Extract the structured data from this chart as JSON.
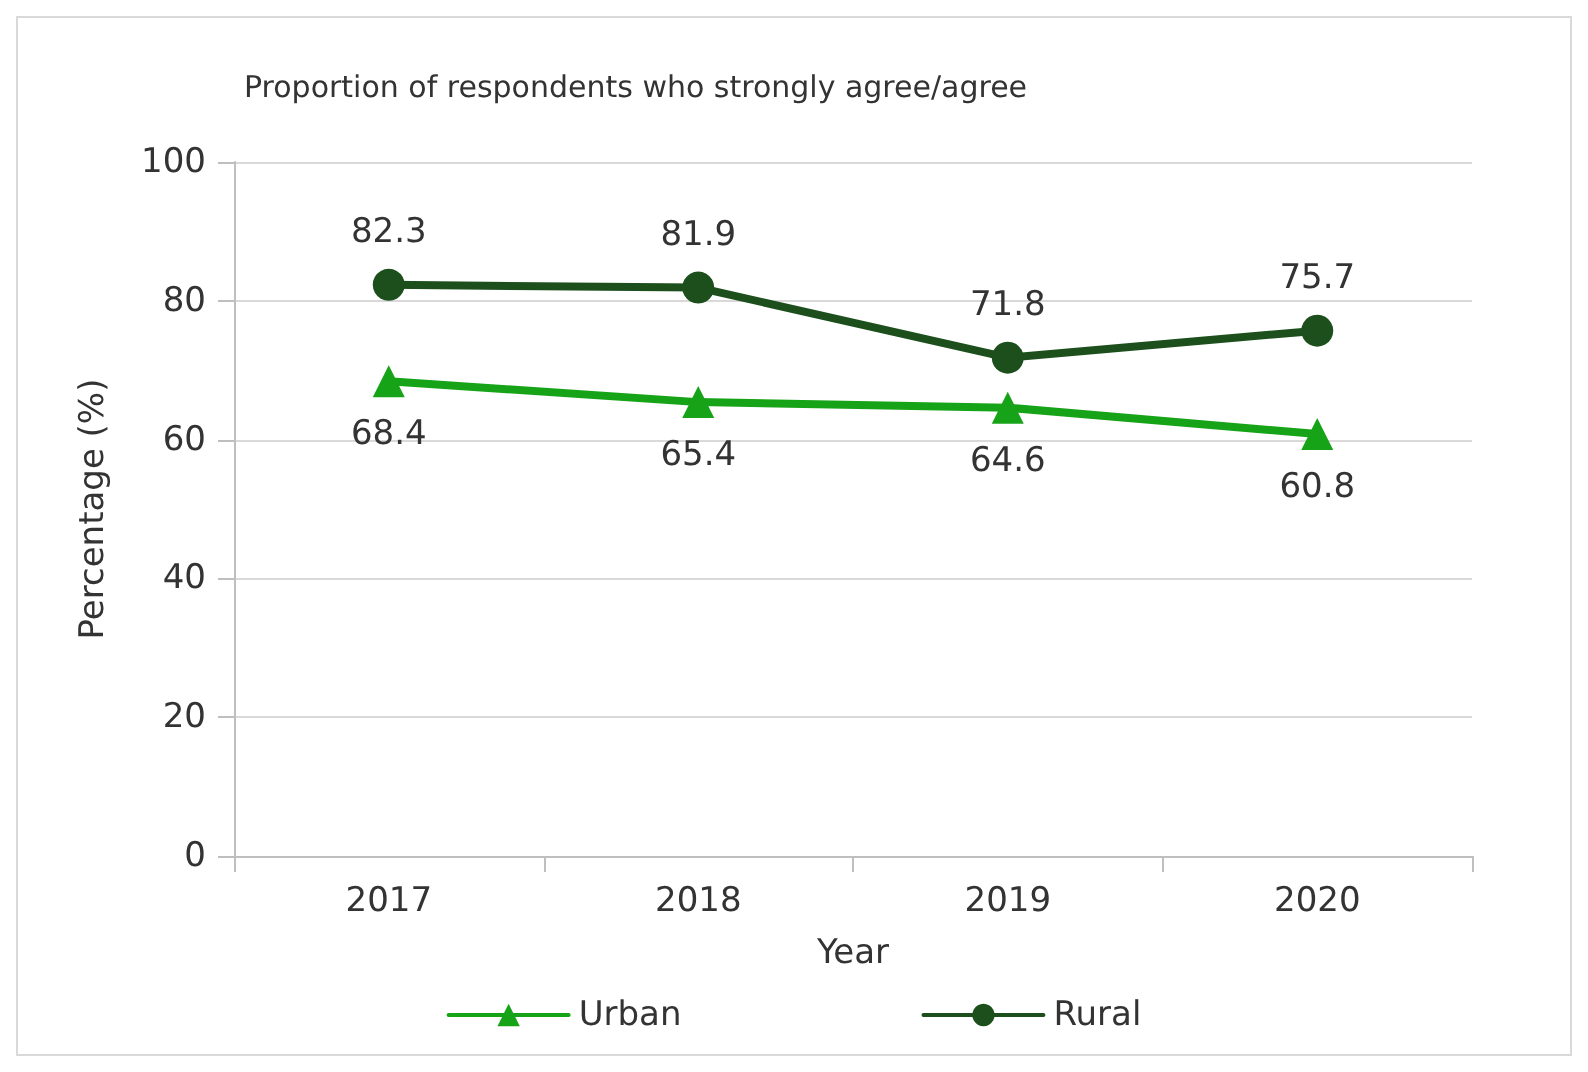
{
  "chart_data": {
    "type": "line",
    "title": "Proportion of respondents who strongly agree/agree",
    "xlabel": "Year",
    "ylabel": "Percentage (%)",
    "categories": [
      "2017",
      "2018",
      "2019",
      "2020"
    ],
    "series": [
      {
        "name": "Urban",
        "color": "#17a317",
        "values": [
          68.4,
          65.4,
          64.6,
          60.8
        ],
        "marker": "triangle"
      },
      {
        "name": "Rural",
        "color": "#1d4f1d",
        "values": [
          82.3,
          81.9,
          71.8,
          75.7
        ],
        "marker": "circle"
      }
    ],
    "ylim": [
      0,
      100
    ],
    "yticks": [
      0,
      20,
      40,
      60,
      80,
      100
    ],
    "grid": "y",
    "legend": "bottom",
    "data_labels": true,
    "line_style": "solid"
  }
}
